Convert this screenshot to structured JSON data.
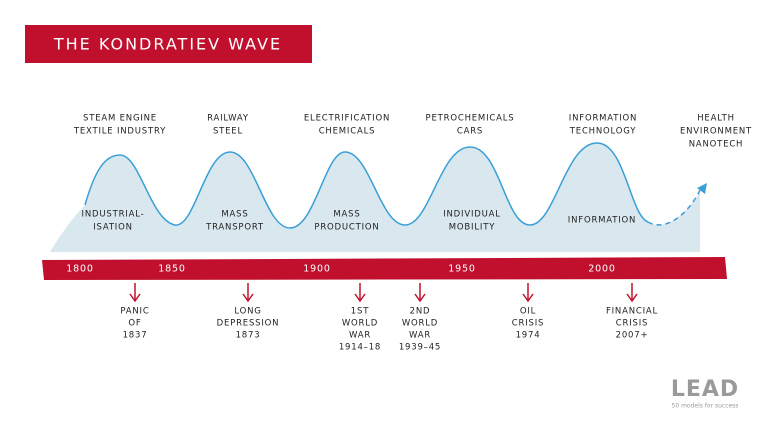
{
  "title": "THE KONDRATIEV WAVE",
  "waves": [
    {
      "technologies": [
        "STEAM ENGINE",
        "TEXTILE INDUSTRY"
      ],
      "theme": [
        "INDUSTRIAL-",
        "ISATION"
      ]
    },
    {
      "technologies": [
        "RAILWAY",
        "STEEL"
      ],
      "theme": [
        "MASS",
        "TRANSPORT"
      ]
    },
    {
      "technologies": [
        "ELECTRIFICATION",
        "CHEMICALS"
      ],
      "theme": [
        "MASS",
        "PRODUCTION"
      ]
    },
    {
      "technologies": [
        "PETROCHEMICALS",
        "CARS"
      ],
      "theme": [
        "INDIVIDUAL",
        "MOBILITY"
      ]
    },
    {
      "technologies": [
        "INFORMATION",
        "TECHNOLOGY"
      ],
      "theme": [
        "INFORMATION"
      ]
    }
  ],
  "future": [
    "HEALTH",
    "ENVIRONMENT",
    "NANOTECH"
  ],
  "years": [
    "1800",
    "1850",
    "1900",
    "1950",
    "2000"
  ],
  "events": [
    [
      "PANIC",
      "OF",
      "1837"
    ],
    [
      "LONG",
      "DEPRESSION",
      "1873"
    ],
    [
      "1ST",
      "WORLD",
      "WAR",
      "1914–18"
    ],
    [
      "2ND",
      "WORLD",
      "WAR",
      "1939–45"
    ],
    [
      "OIL",
      "CRISIS",
      "1974"
    ],
    [
      "FINANCIAL",
      "CRISIS",
      "2007+"
    ]
  ],
  "logo": {
    "name": "LEAD",
    "tagline": "50 models for success"
  }
}
